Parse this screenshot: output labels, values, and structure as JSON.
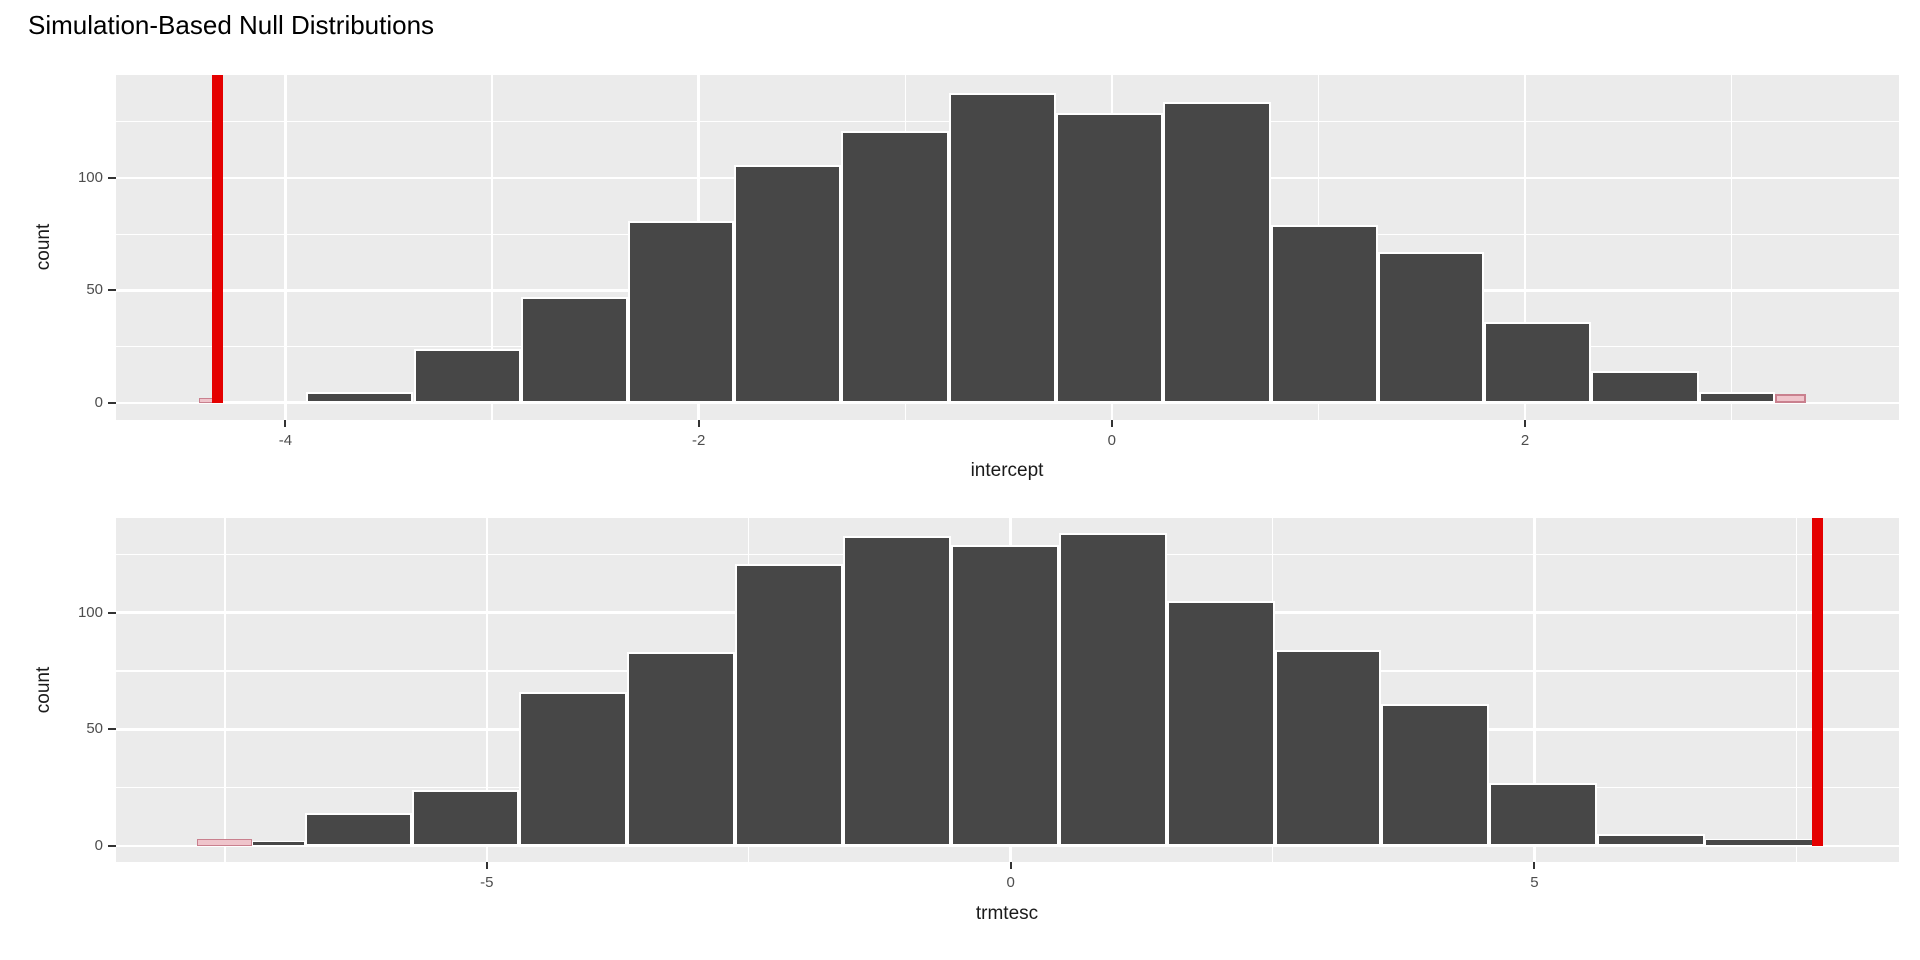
{
  "page": {
    "title": "Simulation-Based Null Distributions"
  },
  "colors": {
    "panel_bg": "#EBEBEB",
    "grid": "#FFFFFF",
    "bar_fill": "#474747",
    "bar_border": "#FFFFFF",
    "tail_fill": "#EFC4CB",
    "tail_border": "#C9808E",
    "obs_line": "#E40000",
    "tick_label": "#4D4D4D",
    "tick_mark": "#333333"
  },
  "chart_data": [
    {
      "type": "bar",
      "subtype": "simulation-null-histogram",
      "xlabel": "intercept",
      "ylabel": "count",
      "xlim": [
        -4.82,
        3.81
      ],
      "ylim": [
        -7.6,
        145.8
      ],
      "grid": "on",
      "x_ticks": [
        {
          "value": -4,
          "label": "-4"
        },
        {
          "value": -2,
          "label": "-2"
        },
        {
          "value": 0,
          "label": "0"
        },
        {
          "value": 2,
          "label": "2"
        }
      ],
      "y_ticks": [
        {
          "value": 0,
          "label": "0"
        },
        {
          "value": 50,
          "label": "50"
        },
        {
          "value": 100,
          "label": "100"
        }
      ],
      "x_minor": [
        -3,
        -1,
        1,
        3
      ],
      "y_minor": [
        25,
        75,
        125
      ],
      "observed_stat": -4.33,
      "bars": [
        {
          "x0": -4.42,
          "x1": -4.33,
          "count": 2,
          "tail": true
        },
        {
          "x0": -4.33,
          "x1": -3.9,
          "count": 1,
          "tail": false
        },
        {
          "x0": -3.9,
          "x1": -3.38,
          "count": 5,
          "tail": false
        },
        {
          "x0": -3.38,
          "x1": -2.86,
          "count": 24,
          "tail": false
        },
        {
          "x0": -2.86,
          "x1": -2.34,
          "count": 47,
          "tail": false
        },
        {
          "x0": -2.34,
          "x1": -1.83,
          "count": 81,
          "tail": false
        },
        {
          "x0": -1.83,
          "x1": -1.31,
          "count": 106,
          "tail": false
        },
        {
          "x0": -1.31,
          "x1": -0.79,
          "count": 121,
          "tail": false
        },
        {
          "x0": -0.79,
          "x1": -0.27,
          "count": 138,
          "tail": false
        },
        {
          "x0": -0.27,
          "x1": 0.25,
          "count": 129,
          "tail": false
        },
        {
          "x0": 0.25,
          "x1": 0.77,
          "count": 134,
          "tail": false
        },
        {
          "x0": 0.77,
          "x1": 1.29,
          "count": 79,
          "tail": false
        },
        {
          "x0": 1.29,
          "x1": 1.8,
          "count": 67,
          "tail": false
        },
        {
          "x0": 1.8,
          "x1": 2.32,
          "count": 36,
          "tail": false
        },
        {
          "x0": 2.32,
          "x1": 2.84,
          "count": 14,
          "tail": false
        },
        {
          "x0": 2.84,
          "x1": 3.21,
          "count": 5,
          "tail": false
        },
        {
          "x0": 3.21,
          "x1": 3.36,
          "count": 4,
          "tail": true
        }
      ]
    },
    {
      "type": "bar",
      "subtype": "simulation-null-histogram",
      "xlabel": "trmtesc",
      "ylabel": "count",
      "xlim": [
        -8.54,
        8.48
      ],
      "ylim": [
        -6.9,
        140.6
      ],
      "grid": "on",
      "x_ticks": [
        {
          "value": -5,
          "label": "-5"
        },
        {
          "value": 0,
          "label": "0"
        },
        {
          "value": 5,
          "label": "5"
        }
      ],
      "y_ticks": [
        {
          "value": 0,
          "label": "0"
        },
        {
          "value": 50,
          "label": "50"
        },
        {
          "value": 100,
          "label": "100"
        }
      ],
      "x_minor": [
        -7.5,
        -2.5,
        2.5,
        7.5
      ],
      "y_minor": [
        25,
        75,
        125
      ],
      "observed_stat": 7.7,
      "bars": [
        {
          "x0": -7.77,
          "x1": -7.24,
          "count": 3,
          "tail": true
        },
        {
          "x0": -7.24,
          "x1": -6.74,
          "count": 2,
          "tail": false
        },
        {
          "x0": -6.74,
          "x1": -5.71,
          "count": 14,
          "tail": false
        },
        {
          "x0": -5.71,
          "x1": -4.69,
          "count": 24,
          "tail": false
        },
        {
          "x0": -4.69,
          "x1": -3.66,
          "count": 66,
          "tail": false
        },
        {
          "x0": -3.66,
          "x1": -2.63,
          "count": 83,
          "tail": false
        },
        {
          "x0": -2.63,
          "x1": -1.6,
          "count": 121,
          "tail": false
        },
        {
          "x0": -1.6,
          "x1": -0.57,
          "count": 133,
          "tail": false
        },
        {
          "x0": -0.57,
          "x1": 0.46,
          "count": 129,
          "tail": false
        },
        {
          "x0": 0.46,
          "x1": 1.49,
          "count": 134,
          "tail": false
        },
        {
          "x0": 1.49,
          "x1": 2.52,
          "count": 105,
          "tail": false
        },
        {
          "x0": 2.52,
          "x1": 3.54,
          "count": 84,
          "tail": false
        },
        {
          "x0": 3.54,
          "x1": 4.57,
          "count": 61,
          "tail": false
        },
        {
          "x0": 4.57,
          "x1": 5.6,
          "count": 27,
          "tail": false
        },
        {
          "x0": 5.6,
          "x1": 6.63,
          "count": 5,
          "tail": false
        },
        {
          "x0": 6.63,
          "x1": 7.66,
          "count": 3,
          "tail": false
        }
      ]
    }
  ]
}
